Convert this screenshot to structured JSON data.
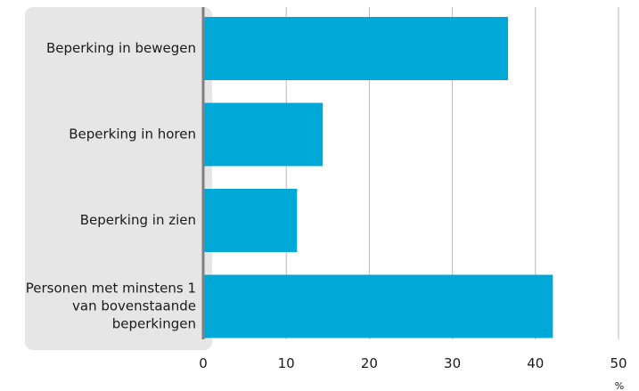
{
  "chart_data": {
    "type": "bar",
    "orientation": "horizontal",
    "categories": [
      [
        "Beperking in bewegen"
      ],
      [
        "Beperking in horen"
      ],
      [
        "Beperking in zien"
      ],
      [
        "Personen met minstens 1",
        "van bovenstaande",
        "beperkingen"
      ]
    ],
    "values": [
      36.7,
      14.4,
      11.3,
      42.1
    ],
    "xlim": [
      0,
      50
    ],
    "xticks": [
      "0",
      "10",
      "20",
      "30",
      "40",
      "50"
    ],
    "xunit": "%",
    "grid": true,
    "colors": {
      "bar": "#00a8d8",
      "label_panel": "#e6e6e6",
      "gridline": "#b8b8b8",
      "axis": "#808080"
    }
  }
}
